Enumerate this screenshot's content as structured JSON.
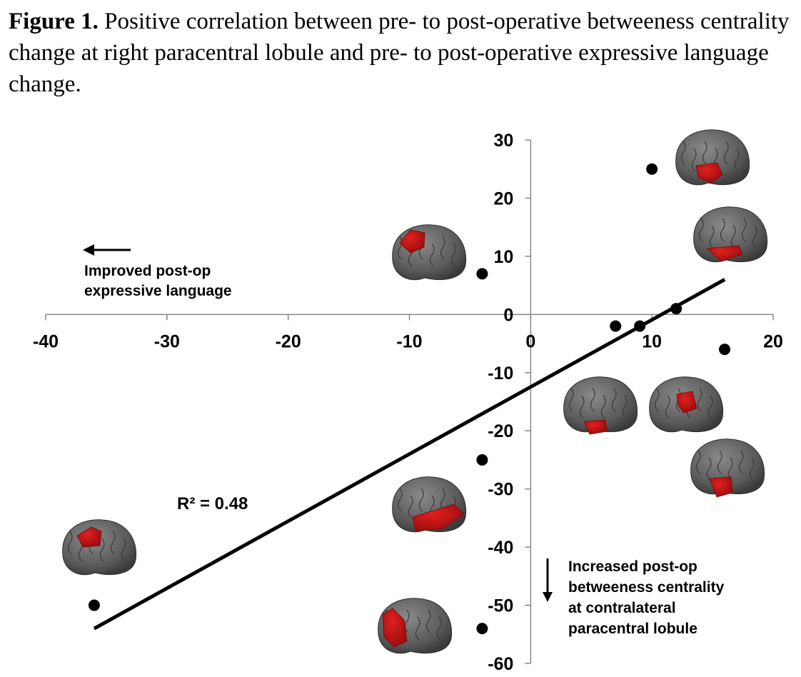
{
  "caption": {
    "lead": "Figure 1.",
    "text": " Positive correlation between pre- to post-operative betweeness centrality change at right paracentral lobule and pre- to post-operative expressive language change."
  },
  "chart_data": {
    "type": "scatter",
    "title": "",
    "xlabel": "",
    "ylabel": "",
    "xlim": [
      -40,
      20
    ],
    "ylim": [
      -60,
      30
    ],
    "x_ticks": [
      -40,
      -30,
      -20,
      -10,
      0,
      10,
      20
    ],
    "y_ticks": [
      30,
      20,
      10,
      0,
      -10,
      -20,
      -30,
      -40,
      -50,
      -60
    ],
    "points": [
      {
        "x": 10,
        "y": 25
      },
      {
        "x": -4,
        "y": 7
      },
      {
        "x": 7,
        "y": -2
      },
      {
        "x": 9,
        "y": -2
      },
      {
        "x": 12,
        "y": 1
      },
      {
        "x": 16,
        "y": -6
      },
      {
        "x": -4,
        "y": -25
      },
      {
        "x": -36,
        "y": -50
      },
      {
        "x": -4,
        "y": -54
      }
    ],
    "trendline": {
      "x": [
        -36,
        16
      ],
      "y": [
        -54,
        6
      ]
    },
    "r2_label": "R² = 0.48",
    "annotations": {
      "improved": [
        "Improved post-op",
        "expressive language"
      ],
      "increased": [
        "Increased post-op",
        "betweeness centrality",
        "at contralateral",
        "paracentral lobule"
      ]
    },
    "colors": {
      "points": "#000000",
      "line": "#000000",
      "brain": "#5c5c5c",
      "highlight": "#c41414"
    }
  }
}
